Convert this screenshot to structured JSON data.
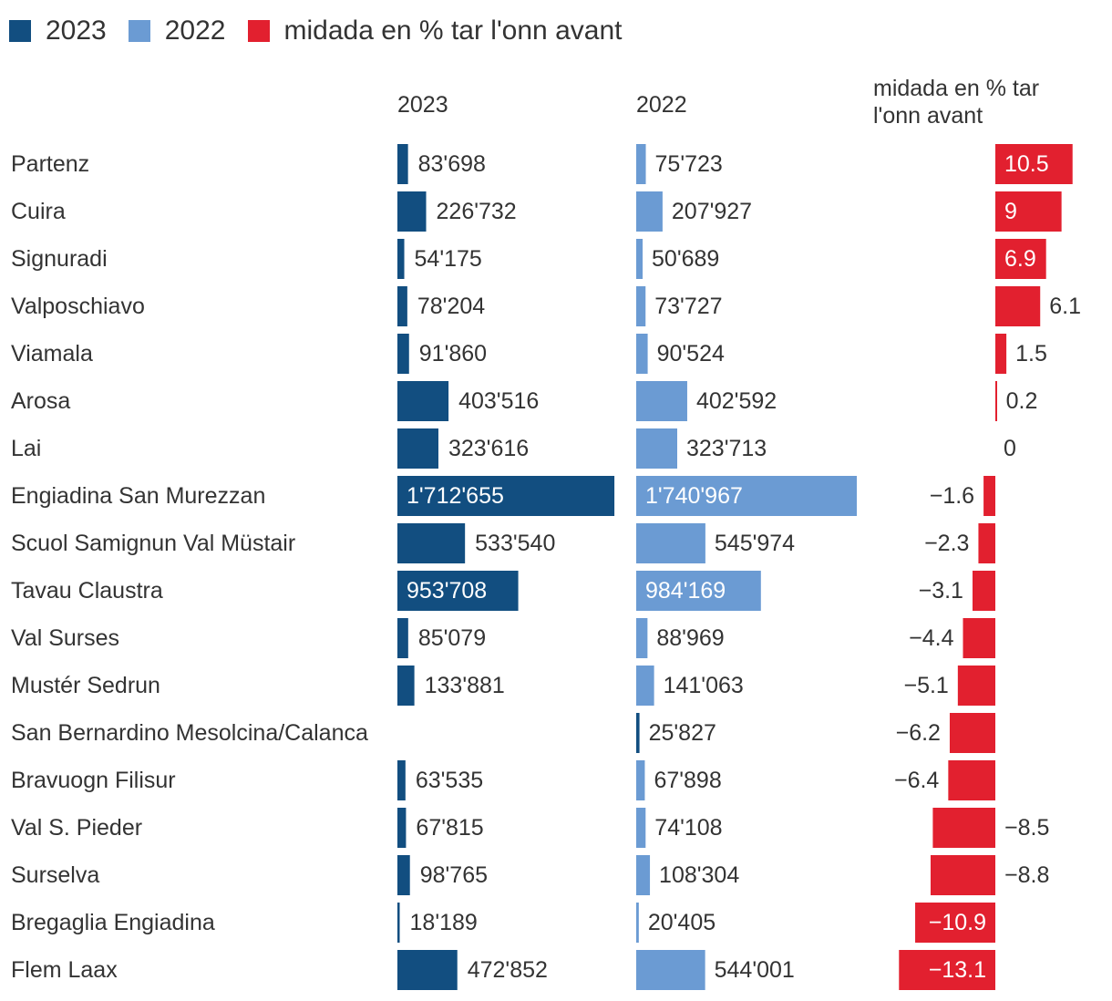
{
  "colors": {
    "c2023": "#124e80",
    "c2022": "#6b9bd3",
    "change": "#e2202f"
  },
  "legend": [
    {
      "label": "2023",
      "color": "#124e80"
    },
    {
      "label": "2022",
      "color": "#6b9bd3"
    },
    {
      "label": "midada en % tar l'onn avant",
      "color": "#e2202f"
    }
  ],
  "headers": {
    "y2023": "2023",
    "y2022": "2022",
    "change_line1": "midada en % tar",
    "change_line2": "l'onn avant"
  },
  "chart_data": {
    "type": "bar",
    "categories": [
      "Partenz",
      "Cuira",
      "Signuradi",
      "Valposchiavo",
      "Viamala",
      "Arosa",
      "Lai",
      "Engiadina San Murezzan",
      "Scuol Samignun Val Müstair",
      "Tavau Claustra",
      "Val Surses",
      "Mustér Sedrun",
      "San Bernardino Mesolcina/Calanca",
      "Bravuogn Filisur",
      "Val S. Pieder",
      "Surselva",
      "Bregaglia Engiadina",
      "Flem Laax"
    ],
    "series": [
      {
        "name": "2023",
        "values": [
          83698,
          226732,
          54175,
          78204,
          91860,
          403516,
          323616,
          1712655,
          533540,
          953708,
          85079,
          133881,
          null,
          63535,
          67815,
          98765,
          18189,
          472852
        ],
        "labels": [
          "83'698",
          "226'732",
          "54'175",
          "78'204",
          "91'860",
          "403'516",
          "323'616",
          "1'712'655",
          "533'540",
          "953'708",
          "85'079",
          "133'881",
          "",
          "63'535",
          "67'815",
          "98'765",
          "18'189",
          "472'852"
        ]
      },
      {
        "name": "2022",
        "values": [
          75723,
          207927,
          50689,
          73727,
          90524,
          402592,
          323713,
          1740967,
          545974,
          984169,
          88969,
          141063,
          25827,
          67898,
          74108,
          108304,
          20405,
          544001
        ],
        "labels": [
          "75'723",
          "207'927",
          "50'689",
          "73'727",
          "90'524",
          "402'592",
          "323'713",
          "1'740'967",
          "545'974",
          "984'169",
          "88'969",
          "141'063",
          "25'827",
          "67'898",
          "74'108",
          "108'304",
          "20'405",
          "544'001"
        ]
      },
      {
        "name": "midada en % tar l'onn avant",
        "values": [
          10.5,
          9,
          6.9,
          6.1,
          1.5,
          0.2,
          0,
          -1.6,
          -2.3,
          -3.1,
          -4.4,
          -5.1,
          -6.2,
          -6.4,
          -8.5,
          -8.8,
          -10.9,
          -13.1
        ],
        "labels": [
          "10.5",
          "9",
          "6.9",
          "6.1",
          "1.5",
          "0.2",
          "0",
          "−1.6",
          "−2.3",
          "−3.1",
          "−4.4",
          "−5.1",
          "−6.2",
          "−6.4",
          "−8.5",
          "−8.8",
          "−10.9",
          "−13.1"
        ]
      }
    ]
  }
}
